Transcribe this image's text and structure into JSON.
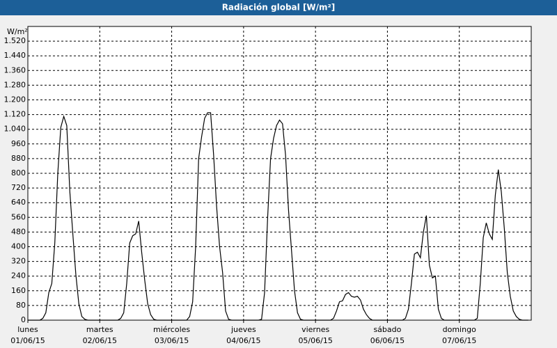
{
  "chart_data": {
    "type": "line",
    "title": "Radiación global [W/m²]",
    "y_label": "W/m²",
    "color": "#000000",
    "grid": true,
    "xlim": [
      0,
      168
    ],
    "ylim": [
      0,
      1600
    ],
    "xticks": [
      {
        "value": 0,
        "label": "lunes"
      },
      {
        "value": 24,
        "label": "martes"
      },
      {
        "value": 48,
        "label": "miércoles"
      },
      {
        "value": 72,
        "label": "jueves"
      },
      {
        "value": 96,
        "label": "viernes"
      },
      {
        "value": 120,
        "label": "sábado"
      },
      {
        "value": 144,
        "label": "domingo"
      }
    ],
    "xtick_dates": [
      "01/06/15",
      "02/06/15",
      "03/06/15",
      "04/06/15",
      "05/06/15",
      "06/06/15",
      "07/06/15"
    ],
    "yticks": [
      0,
      80,
      160,
      240,
      320,
      400,
      480,
      560,
      640,
      720,
      800,
      880,
      960,
      {
        "value": 1040,
        "label": "1.040"
      },
      {
        "value": 1120,
        "label": "1.120"
      },
      {
        "value": 1200,
        "label": "1.200"
      },
      {
        "value": 1280,
        "label": "1.280"
      },
      {
        "value": 1360,
        "label": "1.360"
      },
      {
        "value": 1440,
        "label": "1.440"
      },
      {
        "value": 1520,
        "label": "1.520"
      }
    ],
    "x": [
      0,
      1,
      2,
      3,
      4,
      5,
      6,
      7,
      8,
      9,
      10,
      11,
      12,
      13,
      14,
      15,
      16,
      17,
      18,
      19,
      20,
      21,
      22,
      23,
      24,
      25,
      26,
      27,
      28,
      29,
      30,
      31,
      32,
      33,
      34,
      35,
      36,
      37,
      38,
      39,
      40,
      41,
      42,
      43,
      44,
      45,
      46,
      47,
      48,
      49,
      50,
      51,
      52,
      53,
      54,
      55,
      56,
      57,
      58,
      59,
      60,
      61,
      62,
      63,
      64,
      65,
      66,
      67,
      68,
      69,
      70,
      71,
      72,
      73,
      74,
      75,
      76,
      77,
      78,
      79,
      80,
      81,
      82,
      83,
      84,
      85,
      86,
      87,
      88,
      89,
      90,
      91,
      92,
      93,
      94,
      95,
      96,
      97,
      98,
      99,
      100,
      101,
      102,
      103,
      104,
      105,
      106,
      107,
      108,
      109,
      110,
      111,
      112,
      113,
      114,
      115,
      116,
      117,
      118,
      119,
      120,
      121,
      122,
      123,
      124,
      125,
      126,
      127,
      128,
      129,
      130,
      131,
      132,
      133,
      134,
      135,
      136,
      137,
      138,
      139,
      140,
      141,
      142,
      143,
      144,
      145,
      146,
      147,
      148,
      149,
      150,
      151,
      152,
      153,
      154,
      155,
      156,
      157,
      158,
      159,
      160,
      161,
      162,
      163,
      164,
      165,
      166,
      167
    ],
    "values": [
      0,
      0,
      0,
      0,
      0,
      10,
      40,
      150,
      200,
      420,
      800,
      1050,
      1110,
      1060,
      700,
      470,
      250,
      90,
      20,
      5,
      0,
      0,
      0,
      0,
      0,
      0,
      0,
      0,
      0,
      0,
      0,
      10,
      40,
      200,
      420,
      460,
      470,
      540,
      370,
      220,
      90,
      30,
      5,
      0,
      0,
      0,
      0,
      0,
      0,
      0,
      0,
      0,
      0,
      0,
      20,
      100,
      400,
      880,
      1000,
      1100,
      1130,
      1130,
      900,
      620,
      400,
      260,
      50,
      5,
      0,
      0,
      0,
      0,
      0,
      0,
      0,
      0,
      0,
      0,
      5,
      150,
      550,
      880,
      990,
      1060,
      1090,
      1070,
      900,
      600,
      380,
      160,
      40,
      5,
      0,
      0,
      0,
      0,
      0,
      0,
      0,
      0,
      0,
      0,
      10,
      50,
      100,
      105,
      140,
      150,
      130,
      125,
      130,
      110,
      60,
      30,
      10,
      0,
      0,
      0,
      0,
      0,
      0,
      0,
      0,
      0,
      0,
      0,
      10,
      60,
      200,
      360,
      370,
      340,
      480,
      570,
      300,
      230,
      240,
      60,
      10,
      0,
      0,
      0,
      0,
      0,
      0,
      0,
      0,
      0,
      0,
      0,
      10,
      200,
      450,
      530,
      470,
      440,
      680,
      820,
      700,
      500,
      260,
      130,
      50,
      20,
      5,
      0,
      0,
      0
    ]
  }
}
